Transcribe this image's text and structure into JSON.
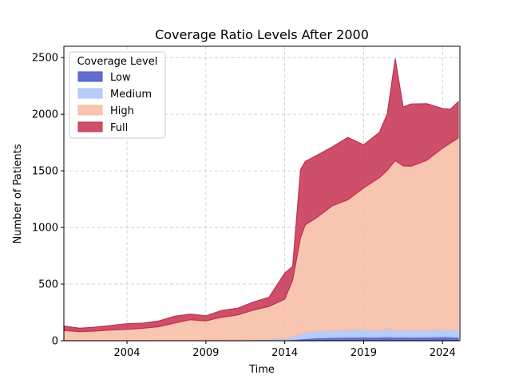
{
  "chart_data": {
    "type": "area",
    "stacked": true,
    "title": "Coverage Ratio Levels After 2000",
    "xlabel": "Time",
    "ylabel": "Number of Patients",
    "xlim": [
      2000.0,
      2025.1
    ],
    "ylim": [
      0,
      2600
    ],
    "x_ticks": [
      2004,
      2009,
      2014,
      2019,
      2024
    ],
    "y_ticks": [
      0,
      500,
      1000,
      1500,
      2000,
      2500
    ],
    "grid": true,
    "legend": {
      "title": "Coverage Level",
      "placement": "top-left"
    },
    "x": [
      2000.0,
      2001.0,
      2002.0,
      2003.0,
      2004.0,
      2005.0,
      2006.0,
      2007.0,
      2008.0,
      2009.0,
      2010.0,
      2011.0,
      2012.0,
      2013.0,
      2014.0,
      2014.5,
      2015.0,
      2015.3,
      2016.0,
      2017.0,
      2018.0,
      2019.0,
      2020.0,
      2020.5,
      2021.0,
      2021.5,
      2022.0,
      2023.0,
      2024.0,
      2024.5,
      2025.0
    ],
    "series": [
      {
        "name": "Low",
        "color": "#4a55c7",
        "values": [
          0,
          0,
          0,
          0,
          0,
          0,
          2,
          2,
          2,
          2,
          3,
          3,
          4,
          5,
          6,
          10,
          15,
          18,
          25,
          28,
          30,
          32,
          30,
          35,
          30,
          32,
          30,
          32,
          35,
          33,
          30
        ]
      },
      {
        "name": "Medium",
        "color": "#a9c4fb",
        "values": [
          0,
          0,
          0,
          0,
          0,
          0,
          2,
          3,
          3,
          3,
          4,
          4,
          6,
          8,
          12,
          25,
          45,
          55,
          60,
          62,
          65,
          68,
          60,
          70,
          60,
          62,
          60,
          62,
          65,
          62,
          60
        ]
      },
      {
        "name": "High",
        "color": "#f6bba2",
        "values": [
          90,
          80,
          85,
          95,
          100,
          110,
          120,
          150,
          180,
          170,
          200,
          220,
          260,
          290,
          350,
          500,
          850,
          950,
          1000,
          1100,
          1150,
          1250,
          1350,
          1400,
          1500,
          1450,
          1450,
          1500,
          1600,
          1650,
          1700
        ]
      },
      {
        "name": "Full",
        "color": "#c4304f",
        "values": [
          40,
          30,
          35,
          40,
          50,
          45,
          50,
          60,
          50,
          45,
          60,
          60,
          70,
          80,
          230,
          120,
          600,
          560,
          550,
          520,
          550,
          380,
          400,
          500,
          900,
          520,
          550,
          500,
          350,
          300,
          320
        ]
      }
    ]
  }
}
